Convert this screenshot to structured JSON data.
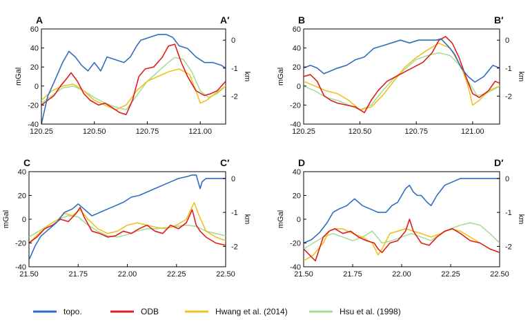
{
  "colors": {
    "topo": "#2f6cc0",
    "odb": "#dd1c1c",
    "hwang": "#f2c01e",
    "hsu": "#a6dd9a"
  },
  "legend": [
    {
      "key": "topo",
      "label": "topo."
    },
    {
      "key": "odb",
      "label": "ODB"
    },
    {
      "key": "hwang",
      "label": "Hwang et al. (2014)"
    },
    {
      "key": "hsu",
      "label": "Hsu et al. (1998)"
    }
  ],
  "chart_data": [
    {
      "type": "line",
      "id": "A",
      "start_label": "A",
      "end_label": "A′",
      "ylabel_left": "mGal",
      "ylabel_right": "km",
      "x_ticks": [
        "120.25",
        "120.50",
        "120.75",
        "121.00"
      ],
      "x_tick_values": [
        120.25,
        120.5,
        120.75,
        121.0
      ],
      "xlim": [
        120.25,
        121.12
      ],
      "ylim_left": [
        -40,
        60
      ],
      "y_ticks_left": [
        "-40",
        "-20",
        "0",
        "20",
        "40",
        "60"
      ],
      "ylim_right": [
        -3,
        0.4
      ],
      "y_ticks_right": [
        "-2",
        "-1",
        "0"
      ],
      "series": [
        {
          "key": "topo",
          "axis": "right",
          "x": [
            120.25,
            120.28,
            120.31,
            120.35,
            120.38,
            120.41,
            120.44,
            120.47,
            120.5,
            120.53,
            120.56,
            120.6,
            120.64,
            120.67,
            120.7,
            120.72,
            120.76,
            120.8,
            120.84,
            120.87,
            120.9,
            120.94,
            120.98,
            121.02,
            121.06,
            121.1,
            121.12
          ],
          "y": [
            -3.0,
            -2.0,
            -1.5,
            -0.8,
            -0.4,
            -0.6,
            -0.9,
            -1.1,
            -0.8,
            -1.1,
            -0.6,
            -0.7,
            -0.8,
            -0.6,
            -0.2,
            0.0,
            0.1,
            0.2,
            0.2,
            0.1,
            -0.2,
            -0.3,
            -0.6,
            -0.8,
            -0.8,
            -0.9,
            -1.0
          ]
        },
        {
          "key": "odb",
          "axis": "left",
          "x": [
            120.25,
            120.28,
            120.31,
            120.34,
            120.37,
            120.39,
            120.42,
            120.45,
            120.48,
            120.52,
            120.55,
            120.58,
            120.62,
            120.65,
            120.68,
            120.71,
            120.74,
            120.78,
            120.82,
            120.85,
            120.88,
            120.91,
            120.94,
            120.98,
            121.02,
            121.05,
            121.08,
            121.12
          ],
          "y": [
            -20,
            -15,
            -10,
            0,
            8,
            14,
            5,
            -8,
            -15,
            -20,
            -18,
            -22,
            -28,
            -30,
            -15,
            10,
            18,
            20,
            30,
            42,
            44,
            25,
            10,
            -5,
            -10,
            -8,
            -5,
            5
          ]
        },
        {
          "key": "hwang",
          "axis": "left",
          "x": [
            120.25,
            120.3,
            120.35,
            120.4,
            120.45,
            120.5,
            120.55,
            120.6,
            120.65,
            120.7,
            120.75,
            120.8,
            120.85,
            120.9,
            120.95,
            120.98,
            121.0,
            121.03,
            121.07,
            121.12
          ],
          "y": [
            -15,
            -5,
            0,
            2,
            -5,
            -15,
            -20,
            -25,
            -20,
            -5,
            5,
            10,
            15,
            18,
            12,
            -5,
            -18,
            -15,
            -8,
            0
          ]
        },
        {
          "key": "hsu",
          "axis": "left",
          "x": [
            120.25,
            120.3,
            120.35,
            120.4,
            120.45,
            120.5,
            120.55,
            120.6,
            120.65,
            120.7,
            120.75,
            120.8,
            120.85,
            120.88,
            120.92,
            120.96,
            121.0,
            121.04,
            121.08,
            121.12
          ],
          "y": [
            -18,
            -10,
            -2,
            0,
            -5,
            -12,
            -18,
            -22,
            -25,
            -10,
            5,
            15,
            25,
            30,
            28,
            15,
            -5,
            -12,
            -8,
            0
          ]
        }
      ]
    },
    {
      "type": "line",
      "id": "B",
      "start_label": "B",
      "end_label": "B′",
      "ylabel_left": "mGal",
      "ylabel_right": "km",
      "x_ticks": [
        "120.25",
        "120.50",
        "120.75",
        "121.00"
      ],
      "x_tick_values": [
        120.25,
        120.5,
        120.75,
        121.0
      ],
      "xlim": [
        120.25,
        121.12
      ],
      "ylim_left": [
        -40,
        60
      ],
      "y_ticks_left": [
        "-40",
        "-20",
        "0",
        "20",
        "40",
        "60"
      ],
      "ylim_right": [
        -3,
        0.4
      ],
      "y_ticks_right": [
        "-2",
        "-1",
        "0"
      ],
      "series": [
        {
          "key": "topo",
          "axis": "right",
          "x": [
            120.25,
            120.28,
            120.31,
            120.34,
            120.37,
            120.4,
            120.44,
            120.48,
            120.52,
            120.56,
            120.6,
            120.64,
            120.68,
            120.72,
            120.76,
            120.8,
            120.84,
            120.86,
            120.89,
            120.92,
            120.95,
            120.98,
            121.01,
            121.05,
            121.09,
            121.12
          ],
          "y": [
            -1.0,
            -0.9,
            -1.0,
            -1.2,
            -1.1,
            -1.0,
            -0.9,
            -0.7,
            -0.6,
            -0.3,
            -0.2,
            -0.1,
            0.0,
            -0.1,
            0.0,
            0.0,
            0.0,
            0.05,
            -0.2,
            -0.5,
            -1.0,
            -1.3,
            -1.5,
            -1.3,
            -0.9,
            -1.0
          ]
        },
        {
          "key": "odb",
          "axis": "left",
          "x": [
            120.25,
            120.28,
            120.31,
            120.34,
            120.37,
            120.4,
            120.44,
            120.48,
            120.52,
            120.55,
            120.58,
            120.62,
            120.66,
            120.7,
            120.74,
            120.78,
            120.82,
            120.85,
            120.88,
            120.91,
            120.94,
            120.97,
            121.0,
            121.03,
            121.07,
            121.1,
            121.12
          ],
          "y": [
            10,
            12,
            5,
            -10,
            -15,
            -18,
            -20,
            -22,
            -28,
            -15,
            -5,
            5,
            10,
            15,
            20,
            25,
            35,
            48,
            52,
            45,
            30,
            10,
            -8,
            -12,
            -5,
            5,
            3
          ]
        },
        {
          "key": "hwang",
          "axis": "left",
          "x": [
            120.25,
            120.3,
            120.35,
            120.4,
            120.45,
            120.5,
            120.55,
            120.6,
            120.65,
            120.7,
            120.75,
            120.8,
            120.85,
            120.9,
            120.95,
            120.98,
            121.0,
            121.03,
            121.07,
            121.12
          ],
          "y": [
            5,
            0,
            -5,
            -8,
            -15,
            -25,
            -22,
            -10,
            5,
            20,
            30,
            38,
            45,
            40,
            20,
            0,
            -20,
            -15,
            -5,
            0
          ]
        },
        {
          "key": "hsu",
          "axis": "left",
          "x": [
            120.25,
            120.3,
            120.35,
            120.4,
            120.45,
            120.5,
            120.55,
            120.6,
            120.65,
            120.7,
            120.75,
            120.8,
            120.85,
            120.9,
            120.95,
            120.98,
            121.02,
            121.06,
            121.12
          ],
          "y": [
            0,
            -5,
            -12,
            -15,
            -20,
            -25,
            -20,
            -5,
            8,
            18,
            28,
            32,
            35,
            32,
            20,
            5,
            -10,
            -8,
            0
          ]
        }
      ]
    },
    {
      "type": "line",
      "id": "C",
      "start_label": "C",
      "end_label": "C′",
      "ylabel_left": "mGal",
      "ylabel_right": "km",
      "x_ticks": [
        "21.50",
        "21.75",
        "22.00",
        "22.25",
        "22.50"
      ],
      "x_tick_values": [
        21.5,
        21.75,
        22.0,
        22.25,
        22.5
      ],
      "xlim": [
        21.5,
        22.5
      ],
      "ylim_left": [
        -40,
        40
      ],
      "y_ticks_left": [
        "-40",
        "-20",
        "0",
        "20",
        "40"
      ],
      "ylim_right": [
        -2.6,
        0.2
      ],
      "y_ticks_right": [
        "-2",
        "-1",
        "0"
      ],
      "series": [
        {
          "key": "topo",
          "axis": "right",
          "x": [
            21.5,
            21.53,
            21.56,
            21.6,
            21.64,
            21.68,
            21.72,
            21.75,
            21.78,
            21.82,
            21.86,
            21.9,
            21.94,
            21.98,
            22.02,
            22.06,
            22.1,
            22.14,
            22.18,
            22.22,
            22.26,
            22.3,
            22.33,
            22.35,
            22.37,
            22.38,
            22.4,
            22.45,
            22.5
          ],
          "y": [
            -2.4,
            -2.0,
            -1.7,
            -1.5,
            -1.3,
            -1.0,
            -0.9,
            -0.75,
            -0.9,
            -1.1,
            -1.0,
            -0.9,
            -0.8,
            -0.7,
            -0.55,
            -0.5,
            -0.4,
            -0.3,
            -0.2,
            -0.1,
            0.0,
            0.05,
            0.1,
            0.1,
            -0.3,
            -0.1,
            0.0,
            0.0,
            0.0
          ]
        },
        {
          "key": "odb",
          "axis": "left",
          "x": [
            21.5,
            21.54,
            21.58,
            21.62,
            21.66,
            21.7,
            21.74,
            21.76,
            21.78,
            21.82,
            21.86,
            21.9,
            21.94,
            21.98,
            22.02,
            22.06,
            22.1,
            22.14,
            22.18,
            22.22,
            22.26,
            22.3,
            22.33,
            22.35,
            22.37,
            22.4,
            22.45,
            22.5
          ],
          "y": [
            -20,
            -15,
            -8,
            -5,
            0,
            -2,
            5,
            10,
            2,
            -10,
            -12,
            -15,
            -14,
            -10,
            -12,
            -8,
            -5,
            -10,
            -12,
            -5,
            -8,
            -3,
            8,
            -5,
            -10,
            -15,
            -20,
            -22
          ]
        },
        {
          "key": "hwang",
          "axis": "left",
          "x": [
            21.5,
            21.55,
            21.6,
            21.65,
            21.68,
            21.72,
            21.76,
            21.8,
            21.85,
            21.9,
            21.95,
            22.0,
            22.05,
            22.1,
            22.15,
            22.2,
            22.25,
            22.3,
            22.34,
            22.36,
            22.4,
            22.45,
            22.5
          ],
          "y": [
            -20,
            -12,
            -5,
            0,
            5,
            3,
            8,
            0,
            -8,
            -12,
            -10,
            -5,
            -3,
            -5,
            -7,
            -8,
            -5,
            0,
            14,
            5,
            -10,
            -15,
            -18
          ]
        },
        {
          "key": "hsu",
          "axis": "left",
          "x": [
            21.5,
            21.55,
            21.6,
            21.65,
            21.7,
            21.75,
            21.8,
            21.85,
            21.9,
            21.95,
            22.0,
            22.05,
            22.1,
            22.15,
            22.2,
            22.25,
            22.3,
            22.35,
            22.4,
            22.45,
            22.5
          ],
          "y": [
            -15,
            -10,
            -5,
            0,
            3,
            2,
            -5,
            -10,
            -14,
            -15,
            -13,
            -10,
            -8,
            -8,
            -7,
            -6,
            -5,
            -6,
            -10,
            -12,
            -14
          ]
        }
      ]
    },
    {
      "type": "line",
      "id": "D",
      "start_label": "D",
      "end_label": "D′",
      "ylabel_left": "mGal",
      "ylabel_right": "km",
      "x_ticks": [
        "21.50",
        "21.75",
        "22.00",
        "22.25",
        "22.50"
      ],
      "x_tick_values": [
        21.5,
        21.75,
        22.0,
        22.25,
        22.5
      ],
      "xlim": [
        21.5,
        22.5
      ],
      "ylim_left": [
        -40,
        40
      ],
      "y_ticks_left": [
        "-40",
        "-20",
        "0",
        "20",
        "40"
      ],
      "ylim_right": [
        -2.6,
        0.2
      ],
      "y_ticks_right": [
        "-2",
        "-1",
        "0"
      ],
      "series": [
        {
          "key": "topo",
          "axis": "right",
          "x": [
            21.5,
            21.54,
            21.58,
            21.62,
            21.65,
            21.68,
            21.72,
            21.76,
            21.8,
            21.84,
            21.88,
            21.92,
            21.95,
            21.98,
            22.02,
            22.04,
            22.06,
            22.08,
            22.1,
            22.13,
            22.15,
            22.18,
            22.22,
            22.26,
            22.3,
            22.35,
            22.4,
            22.45,
            22.5
          ],
          "y": [
            -1.9,
            -1.8,
            -1.6,
            -1.3,
            -1.0,
            -0.9,
            -0.8,
            -0.6,
            -0.8,
            -0.9,
            -1.0,
            -1.0,
            -0.8,
            -0.7,
            -0.3,
            -0.2,
            -0.4,
            -0.5,
            -0.5,
            -0.7,
            -0.8,
            -0.5,
            -0.2,
            -0.1,
            0.0,
            0.0,
            0.0,
            0.0,
            0.0
          ]
        },
        {
          "key": "odb",
          "axis": "left",
          "x": [
            21.5,
            21.53,
            21.56,
            21.6,
            21.63,
            21.66,
            21.7,
            21.74,
            21.78,
            21.82,
            21.86,
            21.88,
            21.9,
            21.94,
            21.98,
            22.02,
            22.04,
            22.06,
            22.08,
            22.1,
            22.14,
            22.18,
            22.22,
            22.26,
            22.3,
            22.35,
            22.4,
            22.45,
            22.5
          ],
          "y": [
            -25,
            -30,
            -35,
            -15,
            -10,
            -8,
            -12,
            -10,
            -15,
            -18,
            -20,
            -25,
            -28,
            -20,
            -18,
            -10,
            0,
            -10,
            -15,
            -20,
            -22,
            -15,
            -10,
            -8,
            -12,
            -18,
            -20,
            -25,
            -28
          ]
        },
        {
          "key": "hwang",
          "axis": "left",
          "x": [
            21.5,
            21.55,
            21.6,
            21.63,
            21.66,
            21.7,
            21.75,
            21.8,
            21.85,
            21.88,
            21.9,
            21.94,
            21.98,
            22.02,
            22.06,
            22.1,
            22.15,
            22.2,
            22.25,
            22.3,
            22.35,
            22.4,
            22.45,
            22.5
          ],
          "y": [
            -35,
            -30,
            -20,
            -10,
            -8,
            -8,
            -12,
            -15,
            -20,
            -30,
            -25,
            -12,
            -10,
            -8,
            -10,
            -12,
            -15,
            -12,
            -8,
            -10,
            -15,
            -20,
            -25,
            -28
          ]
        },
        {
          "key": "hsu",
          "axis": "left",
          "x": [
            21.5,
            21.55,
            21.6,
            21.65,
            21.7,
            21.75,
            21.8,
            21.85,
            21.9,
            21.95,
            22.0,
            22.05,
            22.1,
            22.15,
            22.2,
            22.25,
            22.3,
            22.35,
            22.4,
            22.45,
            22.5
          ],
          "y": [
            -25,
            -20,
            -15,
            -12,
            -15,
            -18,
            -15,
            -10,
            -20,
            -18,
            -15,
            -12,
            -15,
            -18,
            -12,
            -8,
            -5,
            -3,
            -5,
            -12,
            -20
          ]
        }
      ]
    }
  ]
}
